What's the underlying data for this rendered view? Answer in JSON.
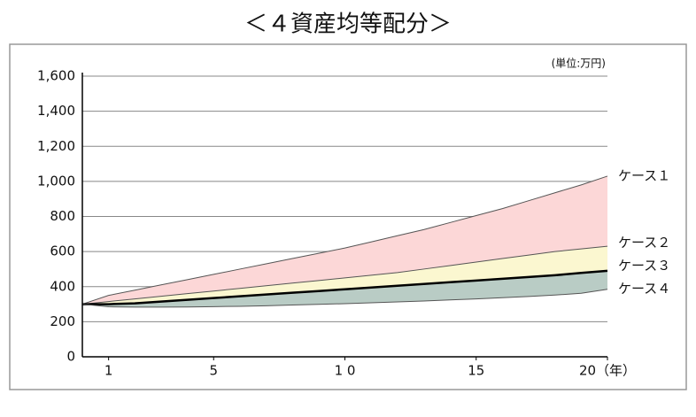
{
  "chart_data": {
    "type": "line",
    "title": "＜４資産均等配分＞",
    "unit_label": "(単位:万円)",
    "x": [
      0,
      1,
      2,
      3,
      4,
      5,
      6,
      7,
      8,
      9,
      10,
      11,
      12,
      13,
      14,
      15,
      16,
      17,
      18,
      19,
      20
    ],
    "xlim": [
      0,
      20
    ],
    "xticks": [
      1,
      5,
      {
        "value": 10,
        "label": "1 0"
      },
      15,
      {
        "value": 20,
        "label": "20（年）"
      }
    ],
    "ylim": [
      0,
      1600
    ],
    "yticks": [
      0,
      200,
      400,
      600,
      800,
      {
        "value": 1000,
        "label": "1,000"
      },
      {
        "value": 1200,
        "label": "1,200"
      },
      {
        "value": 1400,
        "label": "1,400"
      },
      {
        "value": 1600,
        "label": "1,600"
      }
    ],
    "grid": true,
    "series": [
      {
        "name": "ケース１",
        "color": "#555555",
        "fill": "#fcd7d7",
        "values": [
          300,
          350,
          380,
          410,
          440,
          470,
          500,
          530,
          560,
          590,
          620,
          655,
          690,
          725,
          765,
          805,
          845,
          890,
          935,
          980,
          1030
        ]
      },
      {
        "name": "ケース２",
        "color": "#555555",
        "fill": "#fbf7d0",
        "values": [
          300,
          315,
          330,
          345,
          360,
          375,
          390,
          405,
          420,
          435,
          450,
          465,
          480,
          500,
          520,
          540,
          560,
          580,
          600,
          615,
          630
        ]
      },
      {
        "name": "ケース３",
        "color": "#000000",
        "fill": "#b9ccc5",
        "values": [
          300,
          300,
          305,
          315,
          325,
          335,
          345,
          355,
          365,
          375,
          385,
          395,
          405,
          415,
          425,
          435,
          445,
          455,
          465,
          478,
          490
        ]
      },
      {
        "name": "ケース４",
        "color": "#555555",
        "values": [
          300,
          285,
          283,
          283,
          284,
          286,
          288,
          291,
          295,
          299,
          303,
          308,
          313,
          318,
          324,
          330,
          337,
          344,
          352,
          362,
          385
        ]
      }
    ]
  }
}
